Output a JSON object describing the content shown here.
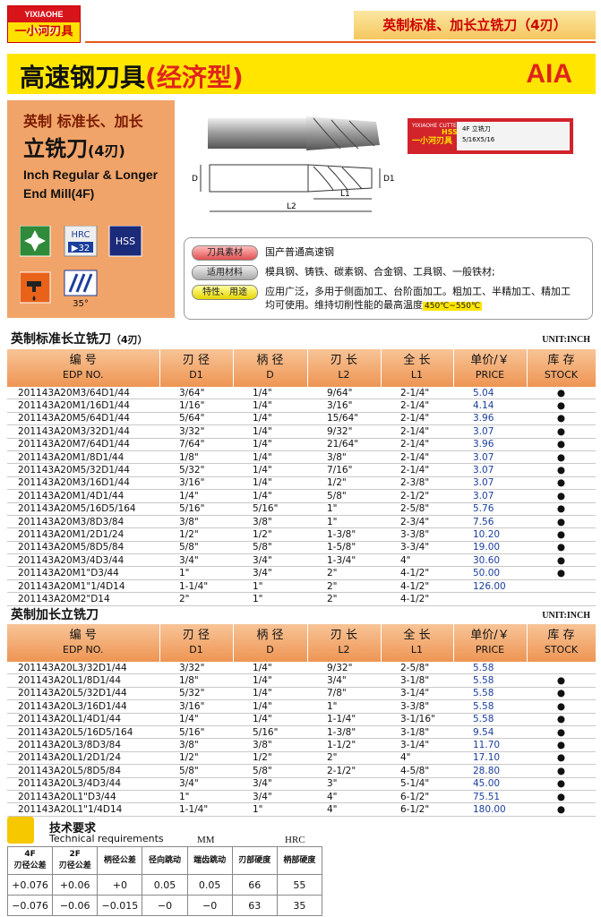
{
  "header": {
    "logo_en": "YIXIAOHE CUTTER",
    "logo_zh": "一小河刃具",
    "section": "英制标准、加长立铣刀（4刃）"
  },
  "title": {
    "main": "高速钢刀具",
    "sub": "(经济型)",
    "code": "AIA"
  },
  "product": {
    "line1": "英制  标准长、加长",
    "line2": "立铣刀",
    "line2_sub": "(4刃)",
    "en1": "Inch Regular & Longer",
    "en2": "End Mill(4F)"
  },
  "icons": {
    "hrc": "HRC",
    "hrc_value": "▶32",
    "hss": "HSS",
    "angle": "35°"
  },
  "drawing": {
    "d": "D",
    "d1": "D1",
    "l1": "L1",
    "l2": "L2"
  },
  "package": {
    "brand": "YIXIAOHE CUTTER",
    "name": "4F 立铣刀",
    "size": "5/16X5/16",
    "material": "HSS",
    "maker": "一小河刃具"
  },
  "properties": [
    {
      "label": "刀具素材",
      "text": "国产普通高速钢"
    },
    {
      "label": "适用材料",
      "text": "模具钢、铸铁、碳素钢、合金钢、工具钢、一般铁材;"
    },
    {
      "label": "特性、用途",
      "text": "应用广泛，多用于侧面加工、台阶面加工。粗加工、半精加工、精加工均可使用。维持切削性能的最高温度",
      "highlight": "450℃~550℃"
    }
  ],
  "tables": [
    {
      "title": "英制标准长立铣刀",
      "title_sub": "（4刃）",
      "unit": "UNIT:INCH",
      "columns": [
        [
          "编 号",
          "EDP NO."
        ],
        [
          "刃 径",
          "D1"
        ],
        [
          "柄 径",
          "D"
        ],
        [
          "刃 长",
          "L2"
        ],
        [
          "全 长",
          "L1"
        ],
        [
          "单价/￥",
          "PRICE"
        ],
        [
          "库 存",
          "STOCK"
        ]
      ],
      "rows": [
        [
          "201143A20M3/64D1/44",
          "3/64\"",
          "1/4\"",
          "9/64\"",
          "2-1/4\"",
          "5.04",
          "●"
        ],
        [
          "201143A20M1/16D1/44",
          "1/16\"",
          "1/4\"",
          "3/16\"",
          "2-1/4\"",
          "4.14",
          "●"
        ],
        [
          "201143A20M5/64D1/44",
          "5/64\"",
          "1/4\"",
          "15/64\"",
          "2-1/4\"",
          "3.96",
          "●"
        ],
        [
          "201143A20M3/32D1/44",
          "3/32\"",
          "1/4\"",
          "9/32\"",
          "2-1/4\"",
          "3.07",
          "●"
        ],
        [
          "201143A20M7/64D1/44",
          "7/64\"",
          "1/4\"",
          "21/64\"",
          "2-1/4\"",
          "3.96",
          "●"
        ],
        [
          "201143A20M1/8D1/44",
          "1/8\"",
          "1/4\"",
          "3/8\"",
          "2-1/4\"",
          "3.07",
          "●"
        ],
        [
          "201143A20M5/32D1/44",
          "5/32\"",
          "1/4\"",
          "7/16\"",
          "2-1/4\"",
          "3.07",
          "●"
        ],
        [
          "201143A20M3/16D1/44",
          "3/16\"",
          "1/4\"",
          "1/2\"",
          "2-3/8\"",
          "3.07",
          "●"
        ],
        [
          "201143A20M1/4D1/44",
          "1/4\"",
          "1/4\"",
          "5/8\"",
          "2-1/2\"",
          "3.07",
          "●"
        ],
        [
          "201143A20M5/16D5/164",
          "5/16\"",
          "5/16\"",
          "1\"",
          "2-5/8\"",
          "5.76",
          "●"
        ],
        [
          "201143A20M3/8D3/84",
          "3/8\"",
          "3/8\"",
          "1\"",
          "2-3/4\"",
          "7.56",
          "●"
        ],
        [
          "201143A20M1/2D1/24",
          "1/2\"",
          "1/2\"",
          "1-3/8\"",
          "3-3/8\"",
          "10.20",
          "●"
        ],
        [
          "201143A20M5/8D5/84",
          "5/8\"",
          "5/8\"",
          "1-5/8\"",
          "3-3/4\"",
          "19.00",
          "●"
        ],
        [
          "201143A20M3/4D3/44",
          "3/4\"",
          "3/4\"",
          "1-3/4\"",
          "4\"",
          "30.60",
          "●"
        ],
        [
          "201143A20M1\"D3/44",
          "1\"",
          "3/4\"",
          "2\"",
          "4-1/2\"",
          "50.00",
          "●"
        ],
        [
          "201143A20M1\"1/4D14",
          "1-1/4\"",
          "1\"",
          "2\"",
          "4-1/2\"",
          "126.00"
        ],
        [
          "201143A20M2\"D14",
          "2\"",
          "1\"",
          "2\"",
          "4-1/2\""
        ]
      ]
    },
    {
      "title": "英制加长立铣刀",
      "unit": "UNIT:INCH",
      "columns": [
        [
          "编 号",
          "EDP NO."
        ],
        [
          "刃 径",
          "D1"
        ],
        [
          "柄 径",
          "D"
        ],
        [
          "刃 长",
          "L2"
        ],
        [
          "全 长",
          "L1"
        ],
        [
          "单价/￥",
          "PRICE"
        ],
        [
          "库 存",
          "STOCK"
        ]
      ],
      "rows": [
        [
          "201143A20L3/32D1/44",
          "3/32\"",
          "1/4\"",
          "9/32\"",
          "2-5/8\"",
          "5.58"
        ],
        [
          "201143A20L1/8D1/44",
          "1/8\"",
          "1/4\"",
          "3/4\"",
          "3-1/8\"",
          "5.58",
          "●"
        ],
        [
          "201143A20L5/32D1/44",
          "5/32\"",
          "1/4\"",
          "7/8\"",
          "3-1/4\"",
          "5.58",
          "●"
        ],
        [
          "201143A20L3/16D1/44",
          "3/16\"",
          "1/4\"",
          "1\"",
          "3-3/8\"",
          "5.58",
          "●"
        ],
        [
          "201143A20L1/4D1/44",
          "1/4\"",
          "1/4\"",
          "1-1/4\"",
          "3-1/16\"",
          "5.58",
          "●"
        ],
        [
          "201143A20L5/16D5/164",
          "5/16\"",
          "5/16\"",
          "1-3/8\"",
          "3-1/8\"",
          "9.54",
          "●"
        ],
        [
          "201143A20L3/8D3/84",
          "3/8\"",
          "3/8\"",
          "1-1/2\"",
          "3-1/4\"",
          "11.70",
          "●"
        ],
        [
          "201143A20L1/2D1/24",
          "1/2\"",
          "1/2\"",
          "2\"",
          "4\"",
          "17.10",
          "●"
        ],
        [
          "201143A20L5/8D5/84",
          "5/8\"",
          "5/8\"",
          "2-1/2\"",
          "4-5/8\"",
          "28.80",
          "●"
        ],
        [
          "201143A20L3/4D3/44",
          "3/4\"",
          "3/4\"",
          "3\"",
          "5-1/4\"",
          "45.00",
          "●"
        ],
        [
          "201143A20L1\"D3/44",
          "1\"",
          "3/4\"",
          "4\"",
          "6-1/2\"",
          "75.51",
          "●"
        ],
        [
          "201143A20L1\"1/4D14",
          "1-1/4\"",
          "1\"",
          "4\"",
          "6-1/2\"",
          "180.00",
          "●"
        ]
      ]
    }
  ],
  "tech": {
    "title": "技术要求",
    "title_en": "Technical requirements",
    "unit_mm": "MM",
    "unit_hrc": "HRC",
    "columns": [
      [
        "4F",
        "刃径公差"
      ],
      [
        "2F",
        "刃径公差"
      ],
      [
        "柄径公差"
      ],
      [
        "径向跳动"
      ],
      [
        "端齿跳动"
      ],
      [
        "刃部硬度"
      ],
      [
        "柄部硬度"
      ]
    ],
    "rows": [
      [
        "+0.076",
        "+0.06",
        "+0",
        "0.05",
        "0.05",
        "66",
        "55"
      ],
      [
        "−0.076",
        "−0.06",
        "−0.015",
        "−0",
        "−0",
        "63",
        "35"
      ]
    ]
  }
}
